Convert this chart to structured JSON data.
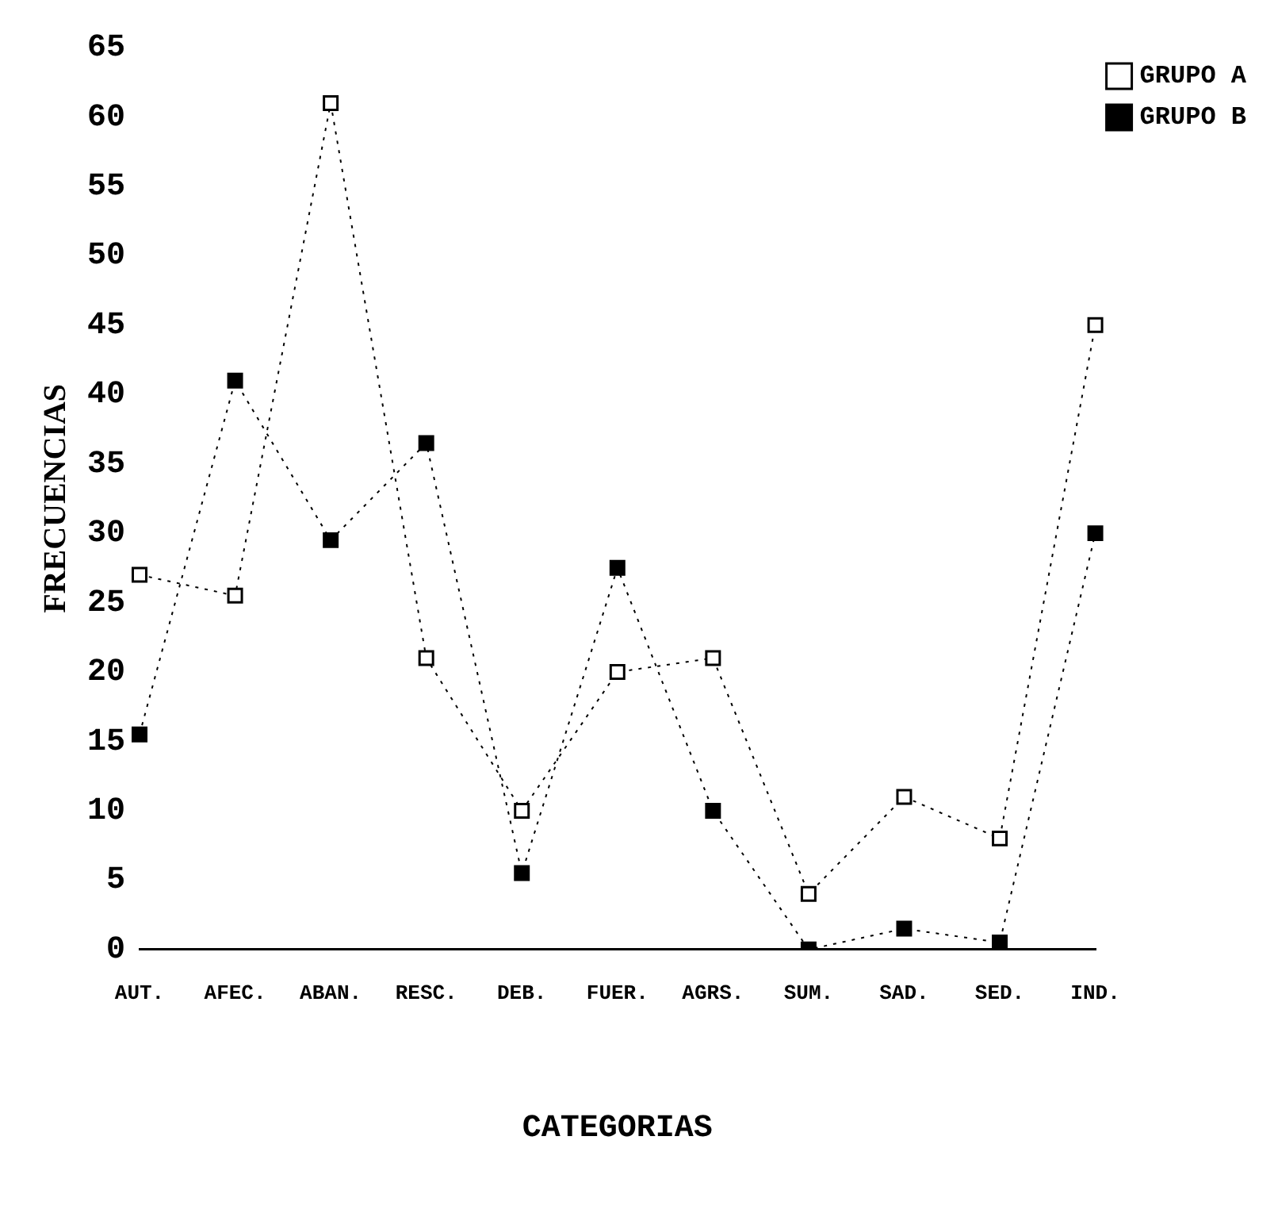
{
  "chart_data": {
    "type": "line",
    "xlabel": "CATEGORIAS",
    "ylabel": "FRECUENCIAS",
    "categories": [
      "AUT.",
      "AFEC.",
      "ABAN.",
      "RESC.",
      "DEB.",
      "FUER.",
      "AGRS.",
      "SUM.",
      "SAD.",
      "SED.",
      "IND."
    ],
    "series": [
      {
        "name": "GRUPO A",
        "color": "#000000",
        "values": [
          27,
          25.5,
          61,
          21,
          10,
          20,
          21,
          4,
          11,
          8,
          45
        ]
      },
      {
        "name": "GRUPO B",
        "color": "#000000",
        "values": [
          15.5,
          41,
          29.5,
          36.5,
          5.5,
          27.5,
          10,
          0,
          1.5,
          0.5,
          30
        ]
      }
    ],
    "ylim": [
      0,
      65
    ],
    "yticks": [
      0,
      5,
      10,
      15,
      20,
      25,
      30,
      35,
      40,
      45,
      50,
      55,
      60,
      65
    ],
    "grid": false,
    "legend": "top right",
    "marker": "square",
    "line_style": "dotted"
  }
}
